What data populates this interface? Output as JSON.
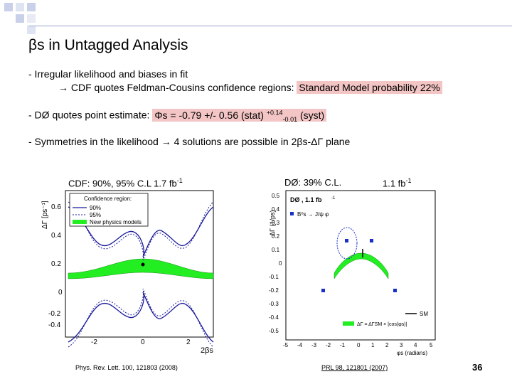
{
  "slide": {
    "title": "βs in Untagged Analysis",
    "bullets": {
      "b1_line1": "- Irregular likelihood and biases in fit",
      "b1_line2_prefix": "→ CDF quotes Feldman-Cousins confidence regions:",
      "b1_line2_highlight": "Standard Model probability 22%",
      "b2_prefix": "- DØ quotes point estimate:",
      "b2_highlight_main": "Φs = -0.79 +/- 0.56 (stat)",
      "b2_sup": "+0.14",
      "b2_sub": "-0.01",
      "b2_suffix": "(syst)",
      "b3": "- Symmetries in the likelihood → 4 solutions are possible in 2βs-ΔΓ plane"
    },
    "slide_number": "36"
  },
  "cdf_plot": {
    "caption": "CDF: 90%, 95% C.L  1.7 fb",
    "caption_sup": "-1",
    "y_label": "ΔΓ [ps⁻¹]",
    "x_label": "2βs",
    "y_ticks": [
      "0.6",
      "0.4",
      "0.2",
      "0",
      "-0.2",
      "-0.4"
    ],
    "x_ticks": [
      "-2",
      "0",
      "2"
    ],
    "legend": {
      "title": "Confidence region:",
      "items": [
        "90%",
        "95%",
        "New physics models"
      ]
    },
    "citation": "Phys. Rev. Lett. 100, 121803 (2008)",
    "colors": {
      "band": "#22ee22",
      "contour": "#1a1a9a"
    }
  },
  "d0_plot": {
    "caption_left": "DØ: 39% C.L.",
    "caption_right": "1.1 fb",
    "caption_sup": "-1",
    "inset_title": "DØ , 1.1 fb",
    "inset_sup": "-1",
    "inset_channel": "B⁰s → J/ψ φ",
    "y_label": "ΔΓ (1/ps)",
    "x_label": "φs (radians)",
    "y_ticks": [
      "0.5",
      "0.4",
      "0.3",
      "0.2",
      "0.1",
      "0",
      "-0.1",
      "-0.2",
      "-0.3",
      "-0.4",
      "-0.5"
    ],
    "x_ticks": [
      "-5",
      "-4",
      "-3",
      "-2",
      "-1",
      "0",
      "1",
      "2",
      "3",
      "4",
      "5"
    ],
    "legend_sm": "SM",
    "legend_formula": "ΔΓ = ΔΓSM × |cos(φs)|",
    "citation": "PRL 98, 121801 (2007)",
    "colors": {
      "band": "#22ee22",
      "points": "#1a2fc8"
    }
  }
}
